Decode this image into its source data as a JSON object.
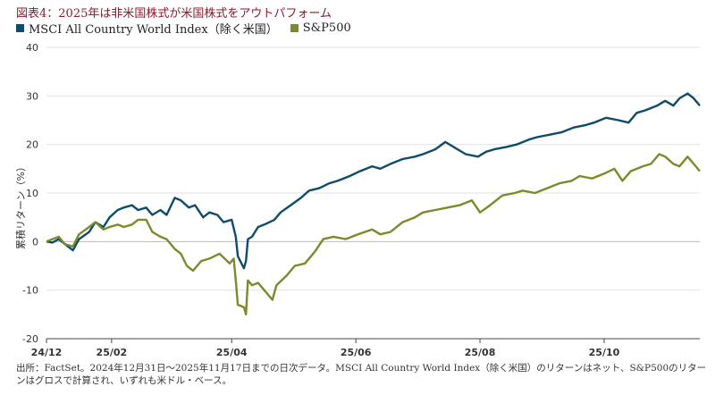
{
  "title": "図表4：2025年は非米国株式が米国株式をアウトパフォーム",
  "source_note": "出所：FactSet。2024年12月31日～2025年11月17日までの日次データ。MSCI All Country World Index（除く米国）のリターンはネット、S&P500のリターンはグロスで計算され、いずれも米ドル・ベース。",
  "chart_data": {
    "type": "line",
    "ylabel": "累積リターン（%）",
    "ylim": [
      -20,
      40
    ],
    "yticks": [
      -20,
      -10,
      0,
      10,
      20,
      30,
      40
    ],
    "grid": "horizontal",
    "legend_position": "top-left",
    "x_ticks": [
      {
        "label": "24/12",
        "x": "2024-12-31"
      },
      {
        "label": "25/02",
        "x": "2025-02-01"
      },
      {
        "label": "25/04",
        "x": "2025-04-01"
      },
      {
        "label": "25/06",
        "x": "2025-06-01"
      },
      {
        "label": "25/08",
        "x": "2025-08-01"
      },
      {
        "label": "25/10",
        "x": "2025-10-01"
      }
    ],
    "x_range": [
      "2024-12-31",
      "2025-11-17"
    ],
    "series": [
      {
        "name": "MSCI All Country World Index（除く米国）",
        "color": "#0f4c6b",
        "points": [
          [
            "2024-12-31",
            0
          ],
          [
            "2025-01-03",
            -0.2
          ],
          [
            "2025-01-06",
            0.5
          ],
          [
            "2025-01-09",
            -0.5
          ],
          [
            "2025-01-13",
            -1.8
          ],
          [
            "2025-01-16",
            0.5
          ],
          [
            "2025-01-21",
            2.0
          ],
          [
            "2025-01-24",
            4.0
          ],
          [
            "2025-01-28",
            3.0
          ],
          [
            "2025-01-31",
            5.0
          ],
          [
            "2025-02-04",
            6.5
          ],
          [
            "2025-02-07",
            7.0
          ],
          [
            "2025-02-11",
            7.5
          ],
          [
            "2025-02-14",
            6.5
          ],
          [
            "2025-02-18",
            7.0
          ],
          [
            "2025-02-21",
            5.5
          ],
          [
            "2025-02-25",
            6.5
          ],
          [
            "2025-02-28",
            5.5
          ],
          [
            "2025-03-04",
            9.0
          ],
          [
            "2025-03-07",
            8.5
          ],
          [
            "2025-03-11",
            7.0
          ],
          [
            "2025-03-14",
            7.5
          ],
          [
            "2025-03-18",
            5.0
          ],
          [
            "2025-03-21",
            6.0
          ],
          [
            "2025-03-25",
            5.5
          ],
          [
            "2025-03-28",
            4.0
          ],
          [
            "2025-04-01",
            4.5
          ],
          [
            "2025-04-03",
            1.0
          ],
          [
            "2025-04-04",
            -3.0
          ],
          [
            "2025-04-07",
            -5.5
          ],
          [
            "2025-04-08",
            -4.0
          ],
          [
            "2025-04-09",
            0.5
          ],
          [
            "2025-04-11",
            1.0
          ],
          [
            "2025-04-14",
            3.0
          ],
          [
            "2025-04-17",
            3.5
          ],
          [
            "2025-04-22",
            4.5
          ],
          [
            "2025-04-25",
            6.0
          ],
          [
            "2025-04-30",
            7.5
          ],
          [
            "2025-05-05",
            9.0
          ],
          [
            "2025-05-09",
            10.5
          ],
          [
            "2025-05-14",
            11.0
          ],
          [
            "2025-05-19",
            12.0
          ],
          [
            "2025-05-23",
            12.5
          ],
          [
            "2025-05-29",
            13.5
          ],
          [
            "2025-06-03",
            14.5
          ],
          [
            "2025-06-09",
            15.5
          ],
          [
            "2025-06-13",
            15.0
          ],
          [
            "2025-06-18",
            16.0
          ],
          [
            "2025-06-24",
            17.0
          ],
          [
            "2025-06-30",
            17.5
          ],
          [
            "2025-07-04",
            18.0
          ],
          [
            "2025-07-10",
            19.0
          ],
          [
            "2025-07-15",
            20.5
          ],
          [
            "2025-07-21",
            19.0
          ],
          [
            "2025-07-25",
            18.0
          ],
          [
            "2025-07-31",
            17.5
          ],
          [
            "2025-08-04",
            18.5
          ],
          [
            "2025-08-08",
            19.0
          ],
          [
            "2025-08-14",
            19.5
          ],
          [
            "2025-08-19",
            20.0
          ],
          [
            "2025-08-25",
            21.0
          ],
          [
            "2025-08-29",
            21.5
          ],
          [
            "2025-09-04",
            22.0
          ],
          [
            "2025-09-10",
            22.5
          ],
          [
            "2025-09-16",
            23.5
          ],
          [
            "2025-09-22",
            24.0
          ],
          [
            "2025-09-26",
            24.5
          ],
          [
            "2025-10-02",
            25.5
          ],
          [
            "2025-10-08",
            25.0
          ],
          [
            "2025-10-13",
            24.5
          ],
          [
            "2025-10-17",
            26.5
          ],
          [
            "2025-10-21",
            27.0
          ],
          [
            "2025-10-27",
            28.0
          ],
          [
            "2025-10-31",
            29.0
          ],
          [
            "2025-11-04",
            28.0
          ],
          [
            "2025-11-07",
            29.5
          ],
          [
            "2025-11-11",
            30.5
          ],
          [
            "2025-11-14",
            29.5
          ],
          [
            "2025-11-17",
            28.0
          ]
        ]
      },
      {
        "name": "S&P500",
        "color": "#7b8a2a",
        "points": [
          [
            "2024-12-31",
            0
          ],
          [
            "2025-01-03",
            0.5
          ],
          [
            "2025-01-06",
            1.0
          ],
          [
            "2025-01-09",
            -0.5
          ],
          [
            "2025-01-13",
            -1.0
          ],
          [
            "2025-01-16",
            1.5
          ],
          [
            "2025-01-21",
            3.0
          ],
          [
            "2025-01-24",
            4.0
          ],
          [
            "2025-01-28",
            2.5
          ],
          [
            "2025-01-31",
            3.0
          ],
          [
            "2025-02-04",
            3.5
          ],
          [
            "2025-02-07",
            3.0
          ],
          [
            "2025-02-11",
            3.5
          ],
          [
            "2025-02-14",
            4.5
          ],
          [
            "2025-02-18",
            4.5
          ],
          [
            "2025-02-21",
            2.0
          ],
          [
            "2025-02-25",
            1.0
          ],
          [
            "2025-02-28",
            0.5
          ],
          [
            "2025-03-04",
            -1.5
          ],
          [
            "2025-03-07",
            -2.5
          ],
          [
            "2025-03-10",
            -5.0
          ],
          [
            "2025-03-13",
            -6.0
          ],
          [
            "2025-03-17",
            -4.0
          ],
          [
            "2025-03-21",
            -3.5
          ],
          [
            "2025-03-26",
            -2.5
          ],
          [
            "2025-03-31",
            -4.5
          ],
          [
            "2025-04-02",
            -3.5
          ],
          [
            "2025-04-03",
            -8.0
          ],
          [
            "2025-04-04",
            -13.0
          ],
          [
            "2025-04-07",
            -13.5
          ],
          [
            "2025-04-08",
            -15.0
          ],
          [
            "2025-04-09",
            -8.0
          ],
          [
            "2025-04-11",
            -9.0
          ],
          [
            "2025-04-14",
            -8.5
          ],
          [
            "2025-04-17",
            -10.0
          ],
          [
            "2025-04-21",
            -12.0
          ],
          [
            "2025-04-23",
            -9.0
          ],
          [
            "2025-04-28",
            -7.0
          ],
          [
            "2025-05-02",
            -5.0
          ],
          [
            "2025-05-07",
            -4.5
          ],
          [
            "2025-05-12",
            -2.0
          ],
          [
            "2025-05-16",
            0.5
          ],
          [
            "2025-05-21",
            1.0
          ],
          [
            "2025-05-27",
            0.5
          ],
          [
            "2025-06-02",
            1.5
          ],
          [
            "2025-06-09",
            2.5
          ],
          [
            "2025-06-13",
            1.5
          ],
          [
            "2025-06-18",
            2.0
          ],
          [
            "2025-06-24",
            4.0
          ],
          [
            "2025-06-30",
            5.0
          ],
          [
            "2025-07-04",
            6.0
          ],
          [
            "2025-07-10",
            6.5
          ],
          [
            "2025-07-16",
            7.0
          ],
          [
            "2025-07-22",
            7.5
          ],
          [
            "2025-07-28",
            8.5
          ],
          [
            "2025-08-01",
            6.0
          ],
          [
            "2025-08-06",
            7.5
          ],
          [
            "2025-08-12",
            9.5
          ],
          [
            "2025-08-18",
            10.0
          ],
          [
            "2025-08-22",
            10.5
          ],
          [
            "2025-08-28",
            10.0
          ],
          [
            "2025-09-03",
            11.0
          ],
          [
            "2025-09-09",
            12.0
          ],
          [
            "2025-09-15",
            12.5
          ],
          [
            "2025-09-19",
            13.5
          ],
          [
            "2025-09-25",
            13.0
          ],
          [
            "2025-10-01",
            14.0
          ],
          [
            "2025-10-06",
            15.0
          ],
          [
            "2025-10-10",
            12.5
          ],
          [
            "2025-10-14",
            14.5
          ],
          [
            "2025-10-20",
            15.5
          ],
          [
            "2025-10-24",
            16.0
          ],
          [
            "2025-10-28",
            18.0
          ],
          [
            "2025-10-31",
            17.5
          ],
          [
            "2025-11-04",
            16.0
          ],
          [
            "2025-11-07",
            15.5
          ],
          [
            "2025-11-11",
            17.5
          ],
          [
            "2025-11-14",
            16.0
          ],
          [
            "2025-11-17",
            14.5
          ]
        ]
      }
    ]
  }
}
